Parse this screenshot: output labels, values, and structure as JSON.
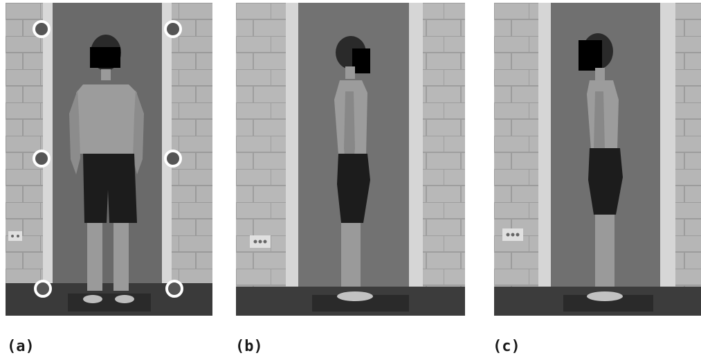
{
  "figure": {
    "panels": [
      {
        "id": "a",
        "caption": "(a)",
        "view": "anterior",
        "calibration_markers": 6
      },
      {
        "id": "b",
        "caption": "(b)",
        "view": "right-lateral"
      },
      {
        "id": "c",
        "caption": "(c)",
        "view": "left-lateral"
      }
    ],
    "icons": [
      "calibration-marker-icon",
      "face-censor-block"
    ]
  }
}
